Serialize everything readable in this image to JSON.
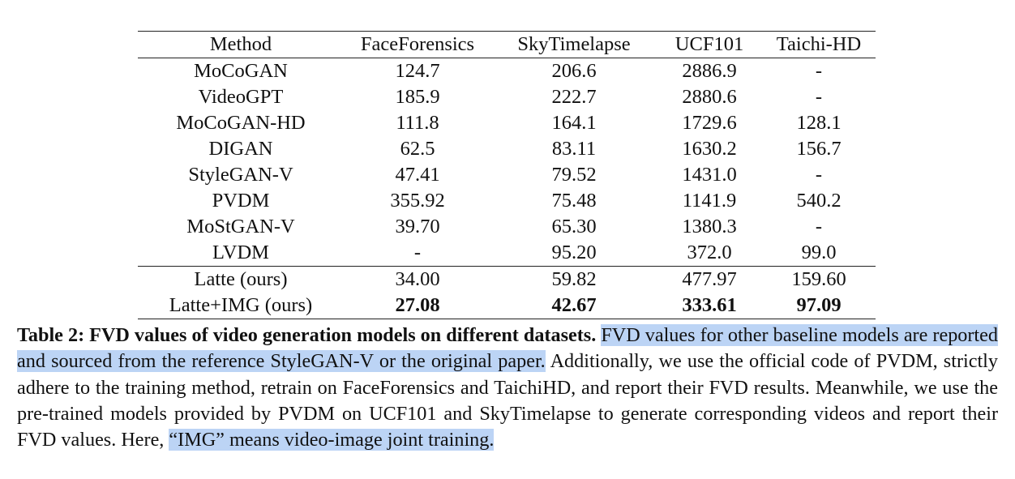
{
  "table": {
    "columns": [
      "Method",
      "FaceForensics",
      "SkyTimelapse",
      "UCF101",
      "Taichi-HD"
    ],
    "baseline_rows": [
      [
        "MoCoGAN",
        "124.7",
        "206.6",
        "2886.9",
        "-"
      ],
      [
        "VideoGPT",
        "185.9",
        "222.7",
        "2880.6",
        "-"
      ],
      [
        "MoCoGAN-HD",
        "111.8",
        "164.1",
        "1729.6",
        "128.1"
      ],
      [
        "DIGAN",
        "62.5",
        "83.11",
        "1630.2",
        "156.7"
      ],
      [
        "StyleGAN-V",
        "47.41",
        "79.52",
        "1431.0",
        "-"
      ],
      [
        "PVDM",
        "355.92",
        "75.48",
        "1141.9",
        "540.2"
      ],
      [
        "MoStGAN-V",
        "39.70",
        "65.30",
        "1380.3",
        "-"
      ],
      [
        "LVDM",
        "-",
        "95.20",
        "372.0",
        "99.0"
      ]
    ],
    "ours_rows": [
      [
        "Latte (ours)",
        "34.00",
        "59.82",
        "477.97",
        "159.60"
      ],
      [
        "Latte+IMG (ours)",
        "27.08",
        "42.67",
        "333.61",
        "97.09"
      ]
    ],
    "bold_row_index": 1
  },
  "caption": {
    "label": "Table 2",
    "title": "FVD values of video generation models on different datasets.",
    "highlight1": "FVD values for other baseline models are reported and sourced from the reference StyleGAN-V or the original paper.",
    "body1": "Additionally, we use the official code of PVDM, strictly adhere to the training method, retrain on FaceForensics and TaichiHD, and report their FVD results. Meanwhile, we use the pre-trained models provided by PVDM on UCF101 and SkyTimelapse to generate corresponding videos and report their FVD values. Here,",
    "highlight2": "“IMG” means video-image joint training."
  }
}
